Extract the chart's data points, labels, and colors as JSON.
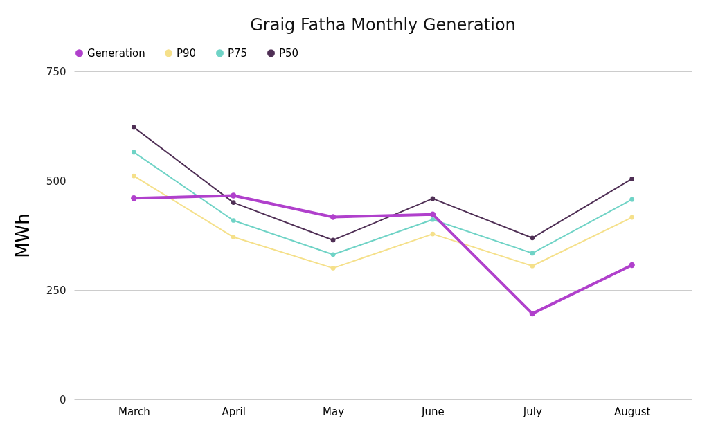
{
  "chart_data": {
    "type": "line",
    "title": "Graig Fatha Monthly Generation",
    "ylabel": "MWh",
    "categories": [
      "March",
      "April",
      "May",
      "June",
      "July",
      "August"
    ],
    "series": [
      {
        "name": "Generation",
        "color": "#b040cc",
        "values": [
          460,
          466,
          417,
          423,
          196,
          307
        ]
      },
      {
        "name": "P90",
        "color": "#f5e08a",
        "values": [
          511,
          371,
          300,
          378,
          305,
          416
        ]
      },
      {
        "name": "P75",
        "color": "#6fd3c6",
        "values": [
          565,
          409,
          331,
          411,
          334,
          457
        ]
      },
      {
        "name": "P50",
        "color": "#4f2f55",
        "values": [
          622,
          450,
          364,
          459,
          369,
          504
        ]
      }
    ],
    "ylim": [
      0,
      750
    ],
    "yticks": [
      0,
      250,
      500,
      750
    ],
    "grid": "y",
    "legend": "top",
    "marker": "circle",
    "line_style": "solid"
  }
}
